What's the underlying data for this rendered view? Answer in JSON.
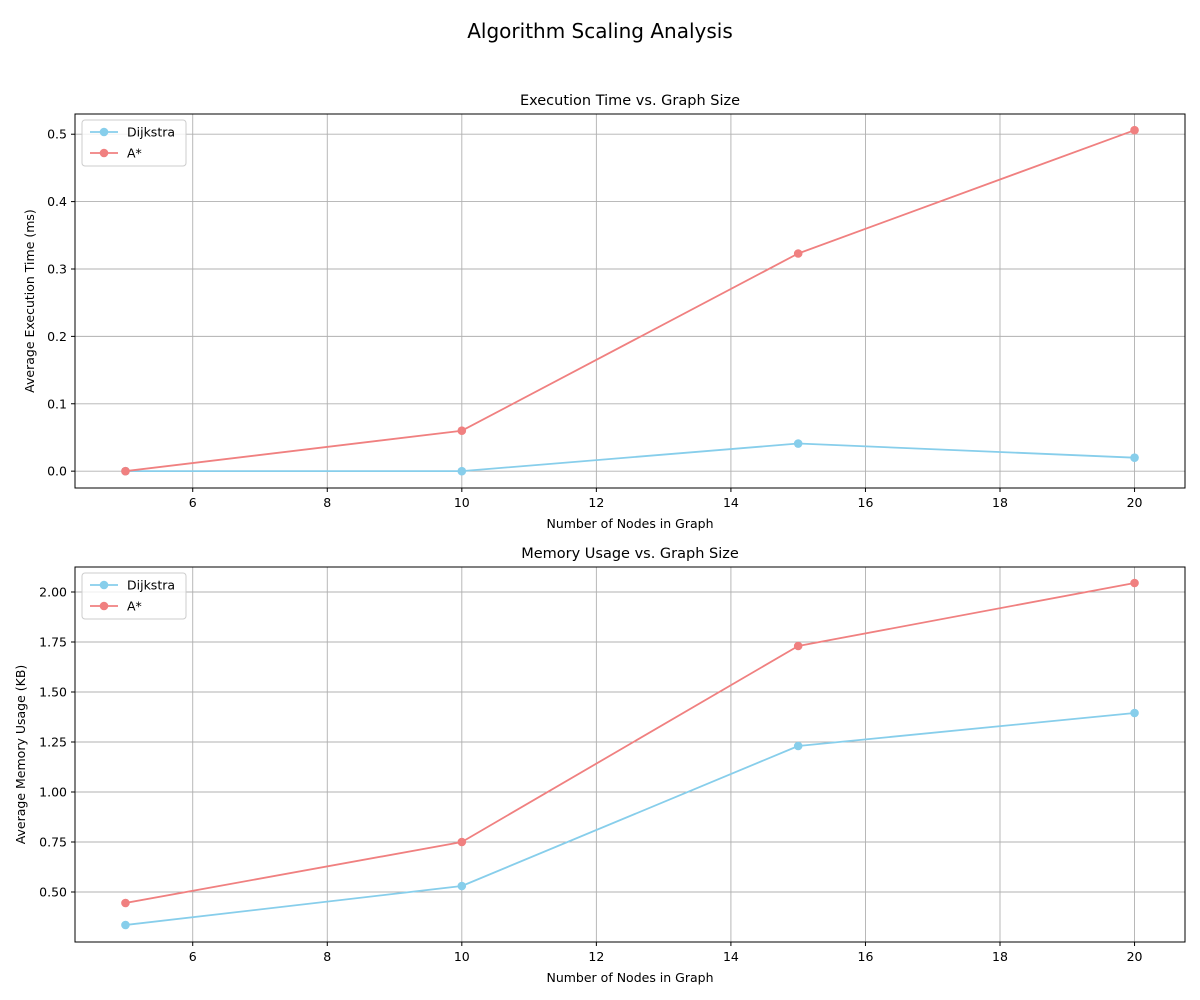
{
  "figure_title": "Algorithm Scaling Analysis",
  "colors": {
    "dijkstra": "#87ceeb",
    "astar": "#f08080",
    "grid": "#b0b0b0",
    "axes": "#000000",
    "legend_border": "#cccccc"
  },
  "chart_data": [
    {
      "type": "line",
      "title": "Execution Time vs. Graph Size",
      "xlabel": "Number of Nodes in Graph",
      "ylabel": "Average Execution Time (ms)",
      "x": [
        5,
        10,
        15,
        20
      ],
      "xlim": [
        4.25,
        20.75
      ],
      "ylim": [
        -0.025,
        0.53
      ],
      "xticks": [
        6,
        8,
        10,
        12,
        14,
        16,
        18,
        20
      ],
      "yticks": [
        0.0,
        0.1,
        0.2,
        0.3,
        0.4,
        0.5
      ],
      "ytick_labels": [
        "0.0",
        "0.1",
        "0.2",
        "0.3",
        "0.4",
        "0.5"
      ],
      "grid": true,
      "legend_placement": "upper-left",
      "series": [
        {
          "name": "Dijkstra",
          "color": "#87ceeb",
          "marker": "circle",
          "values": [
            0.0,
            0.0,
            0.041,
            0.02
          ]
        },
        {
          "name": "A*",
          "color": "#f08080",
          "marker": "circle",
          "values": [
            0.0,
            0.06,
            0.323,
            0.506
          ]
        }
      ]
    },
    {
      "type": "line",
      "title": "Memory Usage vs. Graph Size",
      "xlabel": "Number of Nodes in Graph",
      "ylabel": "Average Memory Usage (KB)",
      "x": [
        5,
        10,
        15,
        20
      ],
      "xlim": [
        4.25,
        20.75
      ],
      "ylim": [
        0.25,
        2.125
      ],
      "xticks": [
        6,
        8,
        10,
        12,
        14,
        16,
        18,
        20
      ],
      "yticks": [
        0.5,
        0.75,
        1.0,
        1.25,
        1.5,
        1.75,
        2.0
      ],
      "ytick_labels": [
        "0.50",
        "0.75",
        "1.00",
        "1.25",
        "1.50",
        "1.75",
        "2.00"
      ],
      "grid": true,
      "legend_placement": "upper-left",
      "series": [
        {
          "name": "Dijkstra",
          "color": "#87ceeb",
          "marker": "circle",
          "values": [
            0.335,
            0.53,
            1.23,
            1.395
          ]
        },
        {
          "name": "A*",
          "color": "#f08080",
          "marker": "circle",
          "values": [
            0.445,
            0.75,
            1.73,
            2.045
          ]
        }
      ]
    }
  ]
}
